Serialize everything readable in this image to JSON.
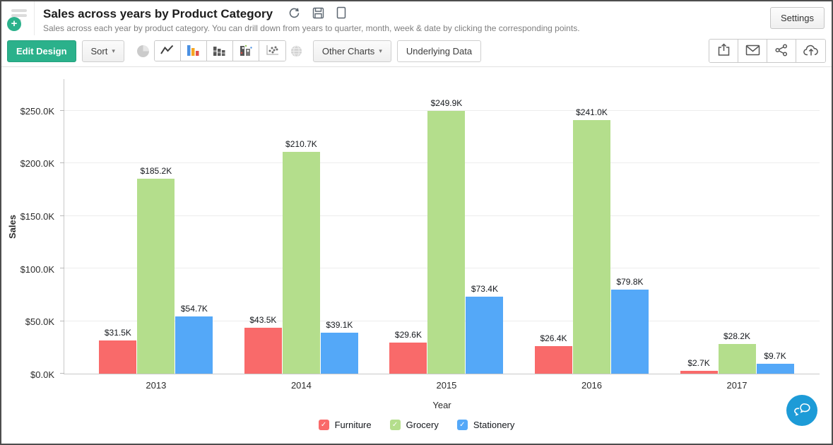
{
  "header": {
    "title": "Sales across years by Product Category",
    "subtitle": "Sales across each year by product category. You can drill down from years to quarter, month, week & date by clicking the corresponding points.",
    "settings_label": "Settings"
  },
  "toolbar": {
    "edit_design_label": "Edit Design",
    "sort_label": "Sort",
    "other_charts_label": "Other Charts",
    "underlying_data_label": "Underlying Data",
    "caret": "▾",
    "chart_type_icons": [
      "pie-chart",
      "line-chart",
      "bar-chart",
      "stacked-bar-chart",
      "bubble-chart",
      "scatter-chart",
      "map-chart"
    ],
    "active_chart_type": "bar-chart",
    "disabled_chart_types": [
      "pie-chart",
      "map-chart"
    ],
    "right_action_icons": [
      "export",
      "email",
      "share",
      "publish"
    ]
  },
  "ui": {
    "plus_glyph": "+",
    "check_glyph": "✓"
  },
  "chart_data": {
    "type": "bar",
    "title": "Sales across years by Product Category",
    "xlabel": "Year",
    "ylabel": "Sales",
    "categories": [
      "2013",
      "2014",
      "2015",
      "2016",
      "2017"
    ],
    "series": [
      {
        "name": "Furniture",
        "color": "#f96a6a",
        "values": [
          31.5,
          43.5,
          29.6,
          26.4,
          2.7
        ],
        "labels": [
          "$31.5K",
          "$43.5K",
          "$29.6K",
          "$26.4K",
          "$2.7K"
        ]
      },
      {
        "name": "Grocery",
        "color": "#b4de8c",
        "values": [
          185.2,
          210.7,
          249.9,
          241.0,
          28.2
        ],
        "labels": [
          "$185.2K",
          "$210.7K",
          "$249.9K",
          "$241.0K",
          "$28.2K"
        ]
      },
      {
        "name": "Stationery",
        "color": "#54a8f8",
        "values": [
          54.7,
          39.1,
          73.4,
          79.8,
          9.7
        ],
        "labels": [
          "$54.7K",
          "$39.1K",
          "$73.4K",
          "$79.8K",
          "$9.7K"
        ]
      }
    ],
    "unit": "USD thousands",
    "y_ticks": [
      {
        "value": 0,
        "label": "$0.0K"
      },
      {
        "value": 50,
        "label": "$50.0K"
      },
      {
        "value": 100,
        "label": "$100.0K"
      },
      {
        "value": 150,
        "label": "$150.0K"
      },
      {
        "value": 200,
        "label": "$200.0K"
      },
      {
        "value": 250,
        "label": "$250.0K"
      }
    ],
    "ylim": [
      0,
      280
    ],
    "grid": true,
    "legend_position": "bottom"
  }
}
